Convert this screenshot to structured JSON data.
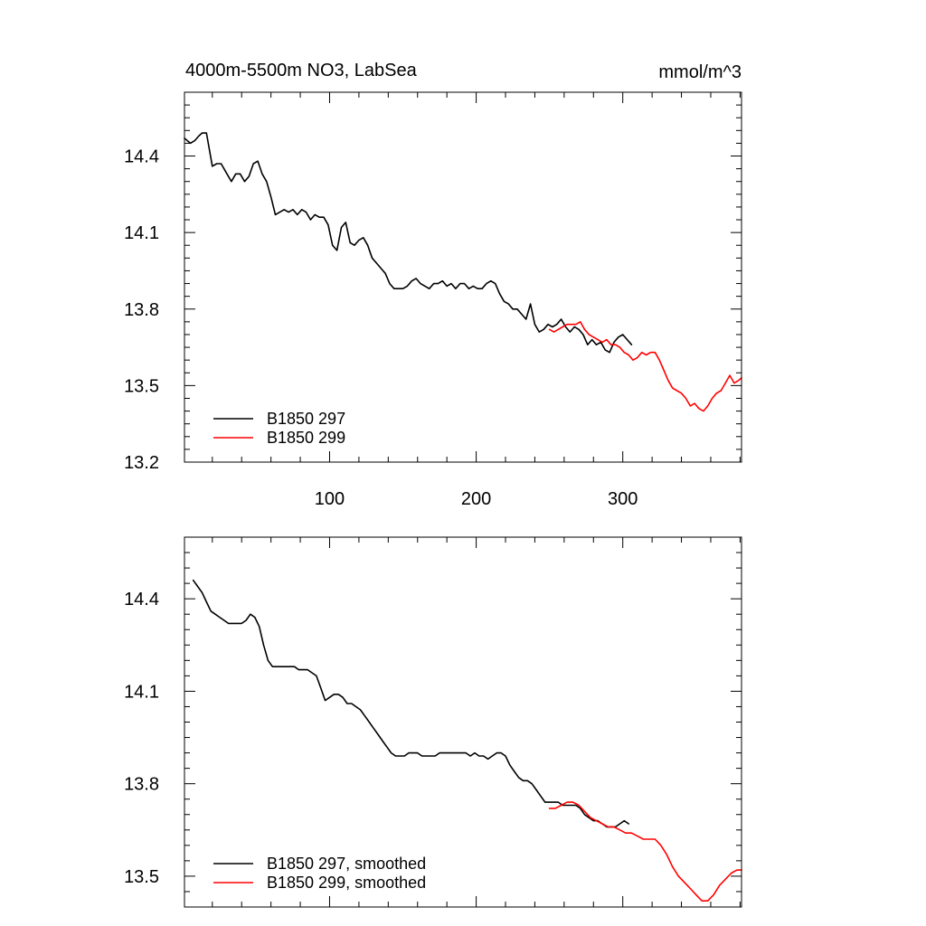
{
  "chart_data": [
    {
      "type": "line",
      "title": "4000m-5500m NO3, LabSea",
      "units_label": "mmol/m^3",
      "xlim": [
        1,
        381
      ],
      "ylim": [
        13.2,
        14.65
      ],
      "x_ticks": [
        100,
        200,
        300
      ],
      "x_tick_labels": [
        "100",
        "200",
        "300"
      ],
      "y_ticks": [
        13.2,
        13.5,
        13.8,
        14.1,
        14.4
      ],
      "y_tick_labels": [
        "13.2",
        "13.5",
        "13.8",
        "14.1",
        "14.4"
      ],
      "grid": false,
      "legend_position": "bottom-left",
      "series": [
        {
          "name": "B1850 297",
          "color": "#000000",
          "x": [
            1,
            5,
            8,
            11,
            13,
            16,
            20,
            23,
            26,
            30,
            33,
            36,
            39,
            42,
            45,
            48,
            51,
            54,
            57,
            60,
            63,
            66,
            69,
            72,
            75,
            78,
            81,
            84,
            87,
            90,
            93,
            96,
            99,
            102,
            105,
            108,
            111,
            114,
            117,
            120,
            123,
            126,
            129,
            132,
            135,
            138,
            141,
            144,
            147,
            150,
            153,
            156,
            159,
            162,
            165,
            168,
            171,
            174,
            177,
            180,
            183,
            186,
            189,
            192,
            195,
            198,
            201,
            204,
            207,
            210,
            213,
            216,
            219,
            222,
            225,
            228,
            231,
            234,
            237,
            240,
            243,
            246,
            249,
            252,
            255,
            258,
            261,
            264,
            267,
            270,
            273,
            276,
            279,
            282,
            285,
            288,
            291,
            294,
            297,
            300,
            303,
            306
          ],
          "y": [
            14.47,
            14.45,
            14.46,
            14.48,
            14.49,
            14.49,
            14.36,
            14.37,
            14.37,
            14.33,
            14.3,
            14.33,
            14.33,
            14.3,
            14.32,
            14.37,
            14.38,
            14.33,
            14.3,
            14.24,
            14.17,
            14.18,
            14.19,
            14.18,
            14.19,
            14.17,
            14.19,
            14.18,
            14.15,
            14.17,
            14.16,
            14.16,
            14.13,
            14.05,
            14.03,
            14.12,
            14.14,
            14.06,
            14.05,
            14.07,
            14.08,
            14.05,
            14.0,
            13.98,
            13.96,
            13.94,
            13.9,
            13.88,
            13.88,
            13.88,
            13.89,
            13.91,
            13.92,
            13.9,
            13.89,
            13.88,
            13.9,
            13.9,
            13.91,
            13.89,
            13.9,
            13.88,
            13.9,
            13.9,
            13.88,
            13.89,
            13.88,
            13.88,
            13.9,
            13.91,
            13.9,
            13.86,
            13.83,
            13.82,
            13.8,
            13.8,
            13.78,
            13.76,
            13.82,
            13.74,
            13.71,
            13.72,
            13.74,
            13.73,
            13.74,
            13.76,
            13.73,
            13.71,
            13.73,
            13.72,
            13.7,
            13.66,
            13.68,
            13.66,
            13.67,
            13.64,
            13.63,
            13.67,
            13.69,
            13.7,
            13.68,
            13.66
          ]
        },
        {
          "name": "B1850 299",
          "color": "#ff0000",
          "x": [
            250,
            253,
            256,
            259,
            262,
            265,
            268,
            271,
            274,
            277,
            280,
            283,
            286,
            289,
            292,
            295,
            298,
            301,
            304,
            307,
            310,
            313,
            316,
            319,
            322,
            325,
            328,
            331,
            334,
            337,
            340,
            343,
            346,
            349,
            352,
            355,
            358,
            361,
            364,
            367,
            370,
            373,
            376,
            379,
            381
          ],
          "y": [
            13.72,
            13.71,
            13.72,
            13.73,
            13.74,
            13.74,
            13.74,
            13.75,
            13.72,
            13.7,
            13.69,
            13.68,
            13.67,
            13.68,
            13.66,
            13.66,
            13.65,
            13.63,
            13.62,
            13.6,
            13.61,
            13.63,
            13.62,
            13.63,
            13.63,
            13.6,
            13.56,
            13.52,
            13.49,
            13.48,
            13.47,
            13.45,
            13.42,
            13.43,
            13.41,
            13.4,
            13.42,
            13.45,
            13.47,
            13.48,
            13.51,
            13.54,
            13.51,
            13.52,
            13.53
          ]
        }
      ]
    },
    {
      "type": "line",
      "xlim": [
        1,
        381
      ],
      "ylim": [
        13.4,
        14.6
      ],
      "x_ticks": [
        100,
        200,
        300
      ],
      "y_ticks": [
        13.5,
        13.8,
        14.1,
        14.4
      ],
      "y_tick_labels": [
        "13.5",
        "13.8",
        "14.1",
        "14.4"
      ],
      "grid": false,
      "legend_position": "bottom-left",
      "series": [
        {
          "name": "B1850 297, smoothed",
          "color": "#000000",
          "x": [
            7,
            10,
            13,
            16,
            19,
            22,
            25,
            28,
            31,
            34,
            37,
            40,
            43,
            46,
            49,
            52,
            55,
            58,
            61,
            64,
            67,
            70,
            73,
            76,
            79,
            82,
            85,
            88,
            91,
            94,
            97,
            100,
            103,
            106,
            109,
            112,
            115,
            118,
            121,
            124,
            127,
            130,
            133,
            136,
            139,
            142,
            145,
            148,
            151,
            154,
            157,
            160,
            163,
            166,
            169,
            172,
            175,
            178,
            181,
            184,
            187,
            190,
            193,
            196,
            199,
            202,
            205,
            208,
            211,
            214,
            217,
            220,
            223,
            226,
            229,
            232,
            235,
            238,
            241,
            244,
            247,
            250,
            253,
            256,
            259,
            262,
            265,
            268,
            271,
            274,
            277,
            280,
            283,
            286,
            289,
            292,
            295,
            298,
            301,
            304
          ],
          "y": [
            14.46,
            14.44,
            14.42,
            14.39,
            14.36,
            14.35,
            14.34,
            14.33,
            14.32,
            14.32,
            14.32,
            14.32,
            14.33,
            14.35,
            14.34,
            14.31,
            14.25,
            14.2,
            14.18,
            14.18,
            14.18,
            14.18,
            14.18,
            14.18,
            14.17,
            14.17,
            14.17,
            14.16,
            14.15,
            14.11,
            14.07,
            14.08,
            14.09,
            14.09,
            14.08,
            14.06,
            14.06,
            14.05,
            14.04,
            14.02,
            14.0,
            13.98,
            13.96,
            13.94,
            13.92,
            13.9,
            13.89,
            13.89,
            13.89,
            13.9,
            13.9,
            13.9,
            13.89,
            13.89,
            13.89,
            13.89,
            13.9,
            13.9,
            13.9,
            13.9,
            13.9,
            13.9,
            13.9,
            13.89,
            13.9,
            13.89,
            13.89,
            13.88,
            13.89,
            13.9,
            13.9,
            13.89,
            13.86,
            13.84,
            13.82,
            13.81,
            13.81,
            13.8,
            13.78,
            13.76,
            13.74,
            13.74,
            13.74,
            13.74,
            13.73,
            13.73,
            13.73,
            13.73,
            13.72,
            13.7,
            13.69,
            13.68,
            13.68,
            13.67,
            13.66,
            13.66,
            13.66,
            13.67,
            13.68,
            13.67
          ]
        },
        {
          "name": "B1850 299, smoothed",
          "color": "#ff0000",
          "x": [
            250,
            254,
            258,
            262,
            266,
            270,
            274,
            278,
            282,
            286,
            290,
            294,
            298,
            302,
            306,
            310,
            314,
            318,
            322,
            326,
            330,
            334,
            338,
            342,
            346,
            350,
            354,
            358,
            362,
            366,
            370,
            374,
            378,
            381
          ],
          "y": [
            13.72,
            13.72,
            13.73,
            13.74,
            13.74,
            13.73,
            13.71,
            13.69,
            13.68,
            13.67,
            13.66,
            13.66,
            13.65,
            13.64,
            13.64,
            13.63,
            13.62,
            13.62,
            13.62,
            13.6,
            13.57,
            13.53,
            13.5,
            13.48,
            13.46,
            13.44,
            13.42,
            13.42,
            13.44,
            13.47,
            13.49,
            13.51,
            13.52,
            13.52
          ]
        }
      ]
    }
  ]
}
